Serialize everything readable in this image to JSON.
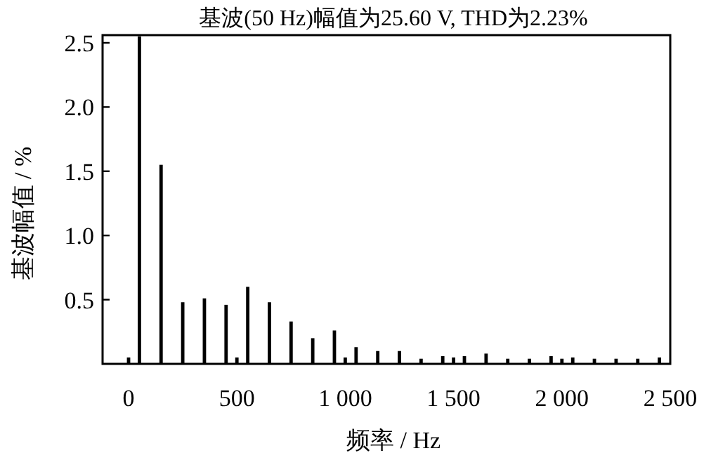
{
  "chart_data": {
    "type": "bar",
    "title": "基波(50 Hz)幅值为25.60 V, THD为2.23%",
    "xlabel": "频率 / Hz",
    "ylabel": "基波幅值 / %",
    "x": [
      0,
      50,
      150,
      250,
      350,
      450,
      500,
      550,
      650,
      750,
      850,
      950,
      1000,
      1050,
      1150,
      1250,
      1350,
      1450,
      1500,
      1550,
      1650,
      1750,
      1850,
      1950,
      2000,
      2050,
      2150,
      2250,
      2350,
      2450
    ],
    "values": [
      0.05,
      2.55,
      1.55,
      0.48,
      0.51,
      0.46,
      0.05,
      0.6,
      0.48,
      0.33,
      0.2,
      0.26,
      0.05,
      0.13,
      0.1,
      0.1,
      0.04,
      0.06,
      0.05,
      0.06,
      0.08,
      0.04,
      0.04,
      0.06,
      0.04,
      0.05,
      0.04,
      0.04,
      0.04,
      0.05
    ],
    "color": "#000000",
    "xlim": [
      -120,
      2500
    ],
    "xticks": [
      0,
      500,
      {
        "value": 1000,
        "label": "1 000"
      },
      {
        "value": 1500,
        "label": "1 500"
      },
      {
        "value": 2000,
        "label": "2 000"
      },
      {
        "value": 2500,
        "label": "2 500"
      }
    ],
    "ylim": [
      0,
      2.56
    ],
    "yticks": [
      0.5,
      {
        "value": 1,
        "label": "1.0"
      },
      1.5,
      {
        "value": 2,
        "label": "2.0"
      },
      2.5
    ],
    "grid": false
  }
}
